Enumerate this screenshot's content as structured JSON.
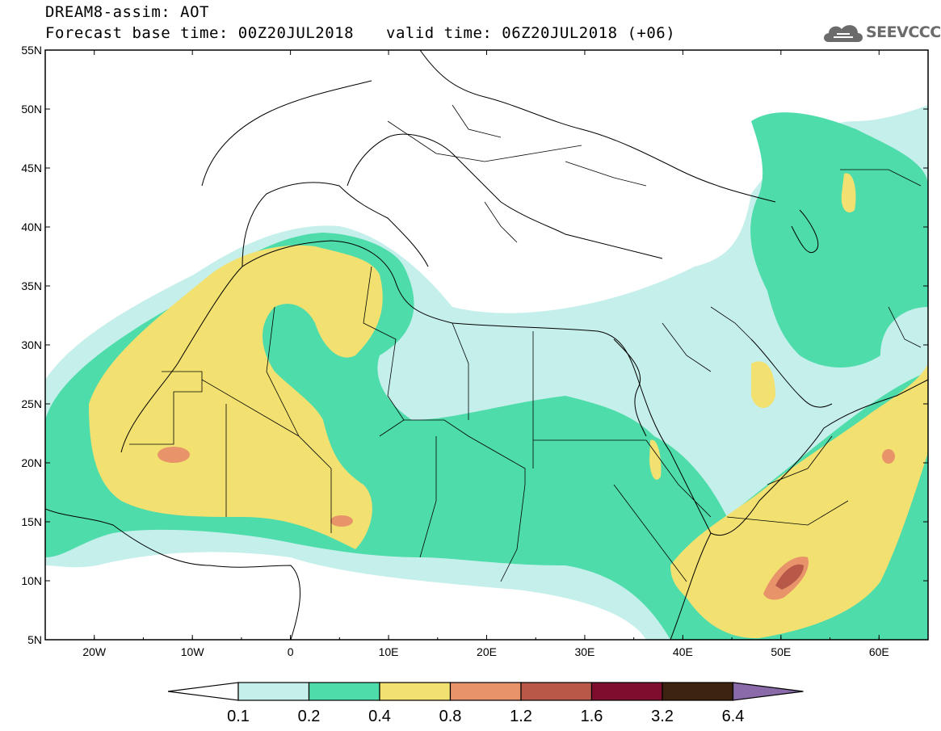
{
  "header": {
    "title_line1": "DREAM8-assim: AOT",
    "title_line2": "Forecast base time: 00Z20JUL2018",
    "valid_text": "valid time: 06Z20JUL2018 (+06)"
  },
  "logo": {
    "text": "SEEVCCC",
    "icon": "cloud-icon"
  },
  "map": {
    "lat_labels": [
      "55N",
      "50N",
      "45N",
      "40N",
      "35N",
      "30N",
      "25N",
      "20N",
      "15N",
      "10N",
      "5N"
    ],
    "lon_labels": [
      "20W",
      "10W",
      "0",
      "10E",
      "20E",
      "30E",
      "40E",
      "50E",
      "60E"
    ],
    "lat_range": [
      5,
      55
    ],
    "lon_range": [
      -25,
      65
    ]
  },
  "colorbar": {
    "levels": [
      "0.1",
      "0.2",
      "0.4",
      "0.8",
      "1.2",
      "1.6",
      "3.2",
      "6.4"
    ],
    "colors": [
      "#ffffff",
      "#c5efea",
      "#4fdcab",
      "#f2e170",
      "#e8936a",
      "#b85848",
      "#7e0d2e",
      "#3d2410",
      "#8a6aa8"
    ]
  },
  "fill_colors": {
    "light": "#c5efea",
    "green": "#4fdcab",
    "yellow": "#f2e170",
    "orange": "#e8936a",
    "red": "#cf6f5a"
  }
}
